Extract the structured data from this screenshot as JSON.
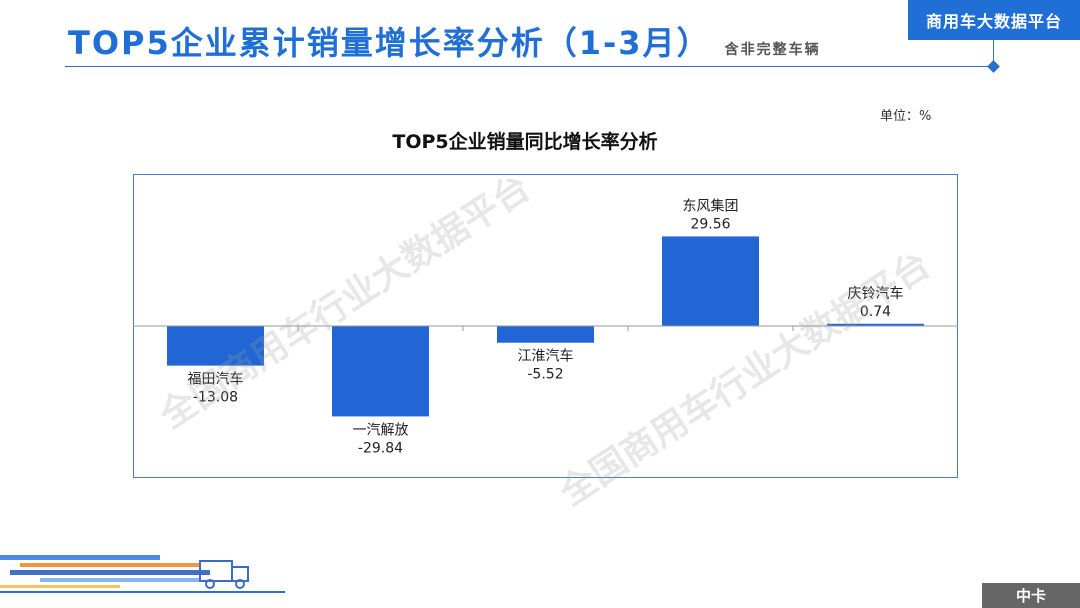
{
  "header": {
    "title": "TOP5企业累计销量增长率分析（1-3月）",
    "subtitle": "含非完整车辆",
    "brand": "商用车大数据平台"
  },
  "unit_label": "单位：%",
  "watermark": "全国商用车行业大数据平台",
  "footer": {
    "badge": "中卡"
  },
  "colors": {
    "accent": "#1f6fd6",
    "bar": "#2166d4"
  },
  "chart_data": {
    "type": "bar",
    "title": "TOP5企业销量同比增长率分析",
    "categories": [
      "福田汽车",
      "一汽解放",
      "江淮汽车",
      "东风集团",
      "庆铃汽车"
    ],
    "values": [
      -13.08,
      -29.84,
      -5.52,
      29.56,
      0.74
    ],
    "value_labels": [
      "-13.08",
      "-29.84",
      "-5.52",
      "29.56",
      "0.74"
    ],
    "ylim": [
      -50,
      50
    ],
    "grid": false,
    "legend": "none"
  }
}
